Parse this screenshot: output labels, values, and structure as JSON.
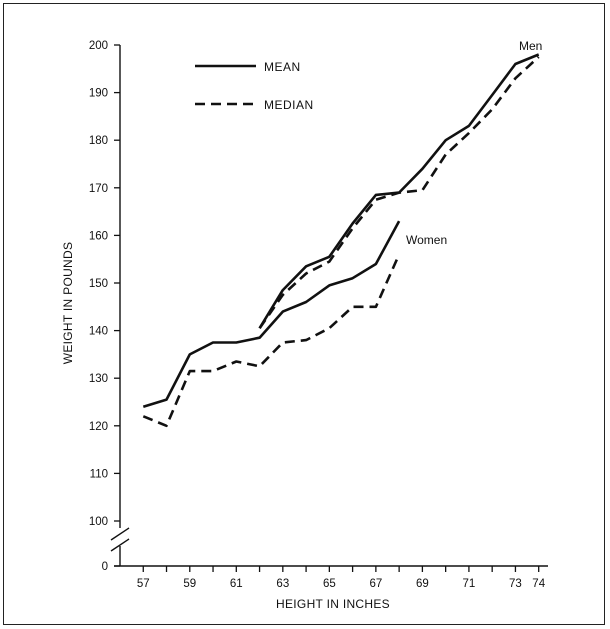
{
  "chart_data": {
    "type": "line",
    "title": "",
    "xlabel": "HEIGHT IN INCHES",
    "ylabel": "WEIGHT IN POUNDS",
    "xlim": [
      56,
      74.4
    ],
    "ylim": [
      100,
      200
    ],
    "y_axis_break": true,
    "y_zero_label": "0",
    "xticks": [
      57,
      59,
      61,
      63,
      65,
      67,
      69,
      71,
      73,
      74
    ],
    "yticks": [
      100,
      110,
      120,
      130,
      140,
      150,
      160,
      170,
      180,
      190,
      200
    ],
    "grid": false,
    "legend": {
      "placement": "top-left",
      "items": [
        {
          "label": "MEAN",
          "style": "solid"
        },
        {
          "label": "MEDIAN",
          "style": "dashed"
        }
      ]
    },
    "series": [
      {
        "name": "Men",
        "group": "Men",
        "stat": "mean",
        "style": "solid",
        "x": [
          62,
          63,
          64,
          65,
          66,
          67,
          68,
          69,
          70,
          71,
          72,
          73,
          74
        ],
        "y": [
          140.5,
          148.5,
          153.5,
          155.5,
          162.5,
          168.5,
          169,
          174,
          180,
          183,
          189.5,
          196,
          198
        ]
      },
      {
        "name": "Men",
        "group": "Men",
        "stat": "median",
        "style": "dashed",
        "x": [
          62,
          63,
          64,
          65,
          66,
          67,
          68,
          69,
          70,
          71,
          72,
          73,
          74
        ],
        "y": [
          140.5,
          147.5,
          152,
          154.5,
          161.5,
          167.5,
          169,
          169.5,
          177,
          181.5,
          186.5,
          193,
          197.5
        ]
      },
      {
        "name": "Women",
        "group": "Women",
        "stat": "mean",
        "style": "solid",
        "x": [
          57,
          58,
          59,
          60,
          61,
          62,
          63,
          64,
          65,
          66,
          67,
          68
        ],
        "y": [
          124,
          125.5,
          135,
          137.5,
          137.5,
          138.5,
          144,
          146,
          149.5,
          151,
          154,
          163
        ]
      },
      {
        "name": "Women",
        "group": "Women",
        "stat": "median",
        "style": "dashed",
        "x": [
          57,
          58,
          59,
          60,
          61,
          62,
          63,
          64,
          65,
          66,
          67,
          68
        ],
        "y": [
          122,
          120,
          131.5,
          131.5,
          133.5,
          132.5,
          137.5,
          138,
          140.5,
          145,
          145,
          156
        ]
      }
    ],
    "annotations": [
      {
        "text": "Men",
        "anchor_series": "Men"
      },
      {
        "text": "Women",
        "anchor_series": "Women"
      }
    ]
  }
}
